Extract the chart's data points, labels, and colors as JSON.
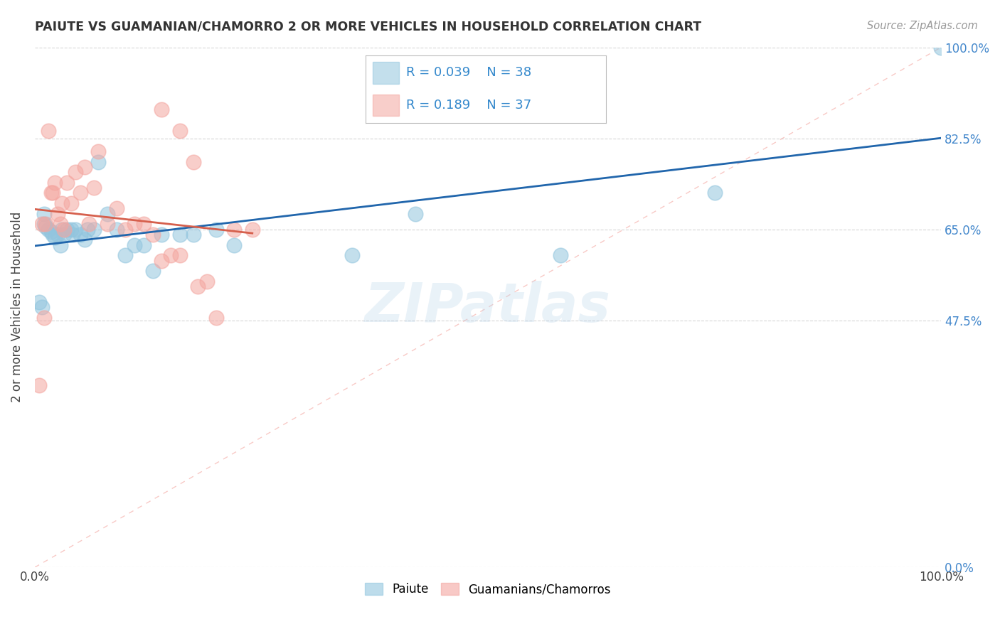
{
  "title": "PAIUTE VS GUAMANIAN/CHAMORRO 2 OR MORE VEHICLES IN HOUSEHOLD CORRELATION CHART",
  "source": "Source: ZipAtlas.com",
  "ylabel": "2 or more Vehicles in Household",
  "xlim": [
    0.0,
    1.0
  ],
  "ylim": [
    0.0,
    1.0
  ],
  "xtick_positions": [
    0.0,
    1.0
  ],
  "xtick_labels": [
    "0.0%",
    "100.0%"
  ],
  "ytick_positions": [
    0.0,
    0.475,
    0.65,
    0.825,
    1.0
  ],
  "ytick_labels": [
    "0.0%",
    "47.5%",
    "65.0%",
    "82.5%",
    "100.0%"
  ],
  "legend_r1": "R = 0.039",
  "legend_n1": "N = 38",
  "legend_r2": "R = 0.189",
  "legend_n2": "N = 37",
  "color_blue": "#92c5de",
  "color_pink": "#f4a6a0",
  "color_blue_line": "#2166ac",
  "color_pink_line": "#d6604d",
  "color_diag_line": "#f4a6a0",
  "watermark": "ZIPatlas",
  "background_color": "#ffffff",
  "grid_color": "#cccccc",
  "paiute_x": [
    0.005,
    0.008,
    0.01,
    0.01,
    0.012,
    0.015,
    0.018,
    0.02,
    0.022,
    0.025,
    0.028,
    0.03,
    0.032,
    0.035,
    0.04,
    0.042,
    0.045,
    0.05,
    0.055,
    0.058,
    0.065,
    0.07,
    0.08,
    0.09,
    0.1,
    0.11,
    0.12,
    0.13,
    0.14,
    0.16,
    0.175,
    0.2,
    0.22,
    0.35,
    0.42,
    0.58,
    0.75,
    1.0
  ],
  "paiute_y": [
    0.51,
    0.5,
    0.66,
    0.68,
    0.655,
    0.65,
    0.645,
    0.64,
    0.635,
    0.64,
    0.62,
    0.65,
    0.64,
    0.65,
    0.65,
    0.64,
    0.65,
    0.64,
    0.63,
    0.65,
    0.65,
    0.78,
    0.68,
    0.65,
    0.6,
    0.62,
    0.62,
    0.57,
    0.64,
    0.64,
    0.64,
    0.65,
    0.62,
    0.6,
    0.68,
    0.6,
    0.72,
    1.0
  ],
  "chamorro_x": [
    0.005,
    0.008,
    0.01,
    0.012,
    0.015,
    0.018,
    0.02,
    0.022,
    0.025,
    0.028,
    0.03,
    0.032,
    0.035,
    0.04,
    0.045,
    0.05,
    0.055,
    0.06,
    0.065,
    0.07,
    0.08,
    0.09,
    0.1,
    0.11,
    0.12,
    0.13,
    0.14,
    0.15,
    0.16,
    0.18,
    0.2,
    0.22,
    0.24,
    0.14,
    0.16,
    0.175,
    0.19
  ],
  "chamorro_y": [
    0.35,
    0.66,
    0.48,
    0.66,
    0.84,
    0.72,
    0.72,
    0.74,
    0.68,
    0.66,
    0.7,
    0.65,
    0.74,
    0.7,
    0.76,
    0.72,
    0.77,
    0.66,
    0.73,
    0.8,
    0.66,
    0.69,
    0.65,
    0.66,
    0.66,
    0.64,
    0.59,
    0.6,
    0.6,
    0.54,
    0.48,
    0.65,
    0.65,
    0.88,
    0.84,
    0.78,
    0.55
  ]
}
